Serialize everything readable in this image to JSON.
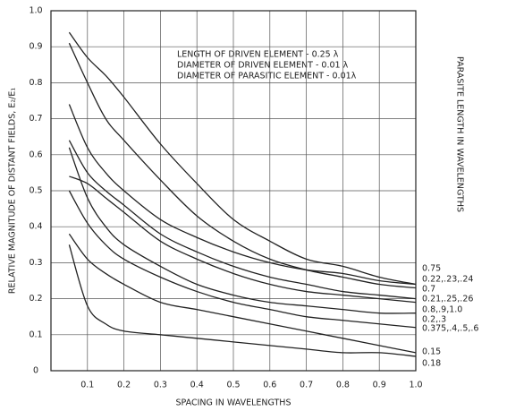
{
  "chart_data": {
    "type": "line",
    "annotations": [
      "LENGTH OF DRIVEN ELEMENT - 0.25 λ",
      "DIAMETER OF DRIVEN ELEMENT - 0.01 λ",
      "DIAMETER OF PARASITIC ELEMENT - 0.01λ"
    ],
    "xlabel": "SPACING IN WAVELENGTHS",
    "ylabel": "RELATIVE MAGNITUDE OF DISTANT FIELDS, E₂/E₁",
    "y2label": "PARASITE LENGTH IN WAVELENGTHS",
    "xlim": [
      0,
      1
    ],
    "ylim": [
      0,
      1
    ],
    "xticks": [
      0.1,
      0.2,
      0.3,
      0.4,
      0.5,
      0.6,
      0.7,
      0.8,
      0.9,
      {
        "value": 1,
        "label": "1.0"
      }
    ],
    "yticks": [
      0,
      0.1,
      0.2,
      0.3,
      0.4,
      0.5,
      0.6,
      0.7,
      0.8,
      0.9,
      {
        "value": 1,
        "label": "1.0"
      }
    ],
    "grid": true,
    "color": "#222222",
    "x": [
      0.05,
      0.1,
      0.15,
      0.2,
      0.3,
      0.4,
      0.5,
      0.6,
      0.7,
      0.8,
      0.9,
      1
    ],
    "series": [
      {
        "name": "0.75",
        "values": [
          0.94,
          0.87,
          0.82,
          0.76,
          0.63,
          0.52,
          0.42,
          0.36,
          0.31,
          0.29,
          0.26,
          0.24
        ]
      },
      {
        "name": "0.22,.23,.24",
        "values": [
          0.91,
          0.8,
          0.7,
          0.64,
          0.53,
          0.43,
          0.36,
          0.31,
          0.28,
          0.26,
          0.24,
          0.23
        ]
      },
      {
        "name": "0.7",
        "values": [
          0.74,
          0.62,
          0.55,
          0.5,
          0.42,
          0.37,
          0.33,
          0.3,
          0.28,
          0.27,
          0.25,
          0.24
        ]
      },
      {
        "name": "0.21,.25,.26",
        "values": [
          0.64,
          0.55,
          0.5,
          0.46,
          0.38,
          0.33,
          0.29,
          0.26,
          0.24,
          0.22,
          0.21,
          0.2
        ]
      },
      {
        "name": "0.8,.9,1.0",
        "values": [
          0.54,
          0.52,
          0.48,
          0.44,
          0.36,
          0.31,
          0.27,
          0.24,
          0.22,
          0.21,
          0.2,
          0.19
        ]
      },
      {
        "name": "0.2,.3",
        "values": [
          0.62,
          0.48,
          0.4,
          0.35,
          0.29,
          0.24,
          0.21,
          0.19,
          0.18,
          0.17,
          0.16,
          0.16
        ]
      },
      {
        "name": "0.375,.4,.5,.6",
        "values": [
          0.5,
          0.41,
          0.35,
          0.31,
          0.26,
          0.22,
          0.19,
          0.17,
          0.15,
          0.14,
          0.13,
          0.12
        ]
      },
      {
        "name": "0.15",
        "values": [
          0.38,
          0.31,
          0.27,
          0.24,
          0.19,
          0.17,
          0.15,
          0.13,
          0.11,
          0.09,
          0.07,
          0.05
        ]
      },
      {
        "name": "0.18",
        "values": [
          0.35,
          0.18,
          0.13,
          0.11,
          0.1,
          0.09,
          0.08,
          0.07,
          0.06,
          0.05,
          0.05,
          0.04
        ]
      }
    ]
  }
}
